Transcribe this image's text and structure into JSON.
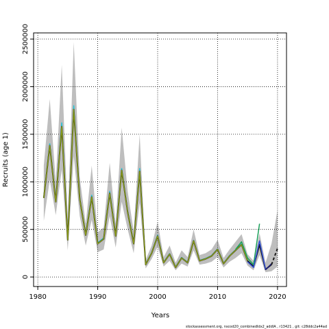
{
  "chart_data": {
    "type": "line",
    "x_label": "Years",
    "y_label": "Recruits (age 1)",
    "footnote": "stockassessment.org, nscod20_combinedIdx2_addIA , r13421 , git: c28ddc2a44ad",
    "x": [
      1981,
      1982,
      1983,
      1984,
      1985,
      1986,
      1987,
      1988,
      1989,
      1990,
      1991,
      1992,
      1993,
      1994,
      1995,
      1996,
      1997,
      1998,
      1999,
      2000,
      2001,
      2002,
      2003,
      2004,
      2005,
      2006,
      2007,
      2008,
      2009,
      2010,
      2011,
      2012,
      2013,
      2014,
      2015,
      2016,
      2017,
      2018,
      2019,
      2020
    ],
    "band_color": "#bebebe",
    "band_lower": [
      590000,
      1020000,
      650000,
      1130000,
      280000,
      1270000,
      640000,
      330000,
      600000,
      260000,
      290000,
      640000,
      310000,
      790000,
      500000,
      250000,
      780000,
      90000,
      190000,
      320000,
      110000,
      170000,
      70000,
      140000,
      110000,
      280000,
      130000,
      140000,
      160000,
      210000,
      100000,
      160000,
      200000,
      250000,
      120000,
      70000,
      230000,
      50000,
      60000,
      110000
    ],
    "band_upper": [
      1170000,
      1870000,
      1000000,
      2230000,
      600000,
      2470000,
      1050000,
      560000,
      1170000,
      470000,
      520000,
      1200000,
      560000,
      1570000,
      900000,
      480000,
      1500000,
      180000,
      330000,
      580000,
      210000,
      330000,
      150000,
      280000,
      210000,
      500000,
      230000,
      250000,
      290000,
      390000,
      200000,
      290000,
      370000,
      450000,
      240000,
      170000,
      460000,
      150000,
      350000,
      700000
    ],
    "series": [
      {
        "color": "#27c2d6",
        "width": 1.5,
        "values": [
          840000,
          1400000,
          800000,
          1620000,
          400000,
          1800000,
          830000,
          450000,
          860000,
          360000,
          410000,
          900000,
          440000,
          1140000,
          690000,
          360000,
          1140000,
          135000,
          255000,
          440000,
          155000,
          245000,
          105000,
          205000,
          155000,
          385000,
          175000,
          195000,
          225000,
          295000,
          145000,
          225000,
          285000,
          345000,
          175000,
          115000,
          null,
          null,
          null,
          null
        ]
      },
      {
        "color": "#1a1a1a",
        "width": 2,
        "values": [
          830000,
          1380000,
          790000,
          1580000,
          390000,
          1760000,
          820000,
          440000,
          840000,
          350000,
          400000,
          880000,
          430000,
          1120000,
          680000,
          350000,
          1110000,
          130000,
          250000,
          430000,
          150000,
          240000,
          100000,
          200000,
          150000,
          380000,
          170000,
          190000,
          220000,
          290000,
          140000,
          220000,
          280000,
          340000,
          170000,
          110000,
          340000,
          80000,
          130000,
          null
        ]
      },
      {
        "color": "#8a9a1a",
        "width": 1.5,
        "values": [
          830000,
          1380000,
          790000,
          1580000,
          390000,
          1760000,
          820000,
          440000,
          840000,
          350000,
          400000,
          880000,
          430000,
          1120000,
          680000,
          350000,
          1110000,
          130000,
          250000,
          430000,
          150000,
          240000,
          100000,
          200000,
          150000,
          380000,
          170000,
          190000,
          220000,
          290000,
          140000,
          220000,
          280000,
          340000,
          170000,
          null,
          null,
          null,
          null,
          null
        ]
      },
      {
        "color": "#1aa05a",
        "width": 1.5,
        "values": [
          null,
          null,
          null,
          null,
          null,
          null,
          null,
          null,
          null,
          null,
          null,
          null,
          null,
          null,
          null,
          null,
          null,
          null,
          null,
          null,
          null,
          null,
          null,
          null,
          null,
          null,
          null,
          null,
          null,
          null,
          null,
          null,
          290000,
          370000,
          200000,
          130000,
          560000,
          null,
          null,
          null
        ]
      },
      {
        "color": "#3050d8",
        "width": 1.5,
        "values": [
          null,
          null,
          null,
          null,
          null,
          null,
          null,
          null,
          null,
          null,
          null,
          null,
          null,
          null,
          null,
          null,
          null,
          null,
          null,
          null,
          null,
          null,
          null,
          null,
          null,
          null,
          null,
          null,
          null,
          null,
          null,
          null,
          null,
          null,
          160000,
          100000,
          380000,
          80000,
          null,
          null
        ]
      },
      {
        "color": "#20207a",
        "width": 1.5,
        "values": [
          null,
          null,
          null,
          null,
          null,
          null,
          null,
          null,
          null,
          null,
          null,
          null,
          null,
          null,
          null,
          null,
          null,
          null,
          null,
          null,
          null,
          null,
          null,
          null,
          null,
          null,
          null,
          null,
          null,
          null,
          null,
          null,
          null,
          null,
          null,
          null,
          null,
          75000,
          140000,
          null
        ]
      },
      {
        "color": "#1a1a1a",
        "width": 2,
        "dash": true,
        "values": [
          null,
          null,
          null,
          null,
          null,
          null,
          null,
          null,
          null,
          null,
          null,
          null,
          null,
          null,
          null,
          null,
          null,
          null,
          null,
          null,
          null,
          null,
          null,
          null,
          null,
          null,
          null,
          null,
          null,
          null,
          null,
          null,
          null,
          null,
          null,
          null,
          null,
          null,
          130000,
          300000
        ]
      }
    ],
    "xlim": [
      1979.3,
      2021.5
    ],
    "ylim": [
      -100000,
      2565000
    ],
    "xticks": [
      1980,
      1990,
      2000,
      2010,
      2020
    ],
    "yticks": [
      0,
      500000,
      1000000,
      1500000,
      2000000,
      2500000
    ],
    "grid": true
  }
}
